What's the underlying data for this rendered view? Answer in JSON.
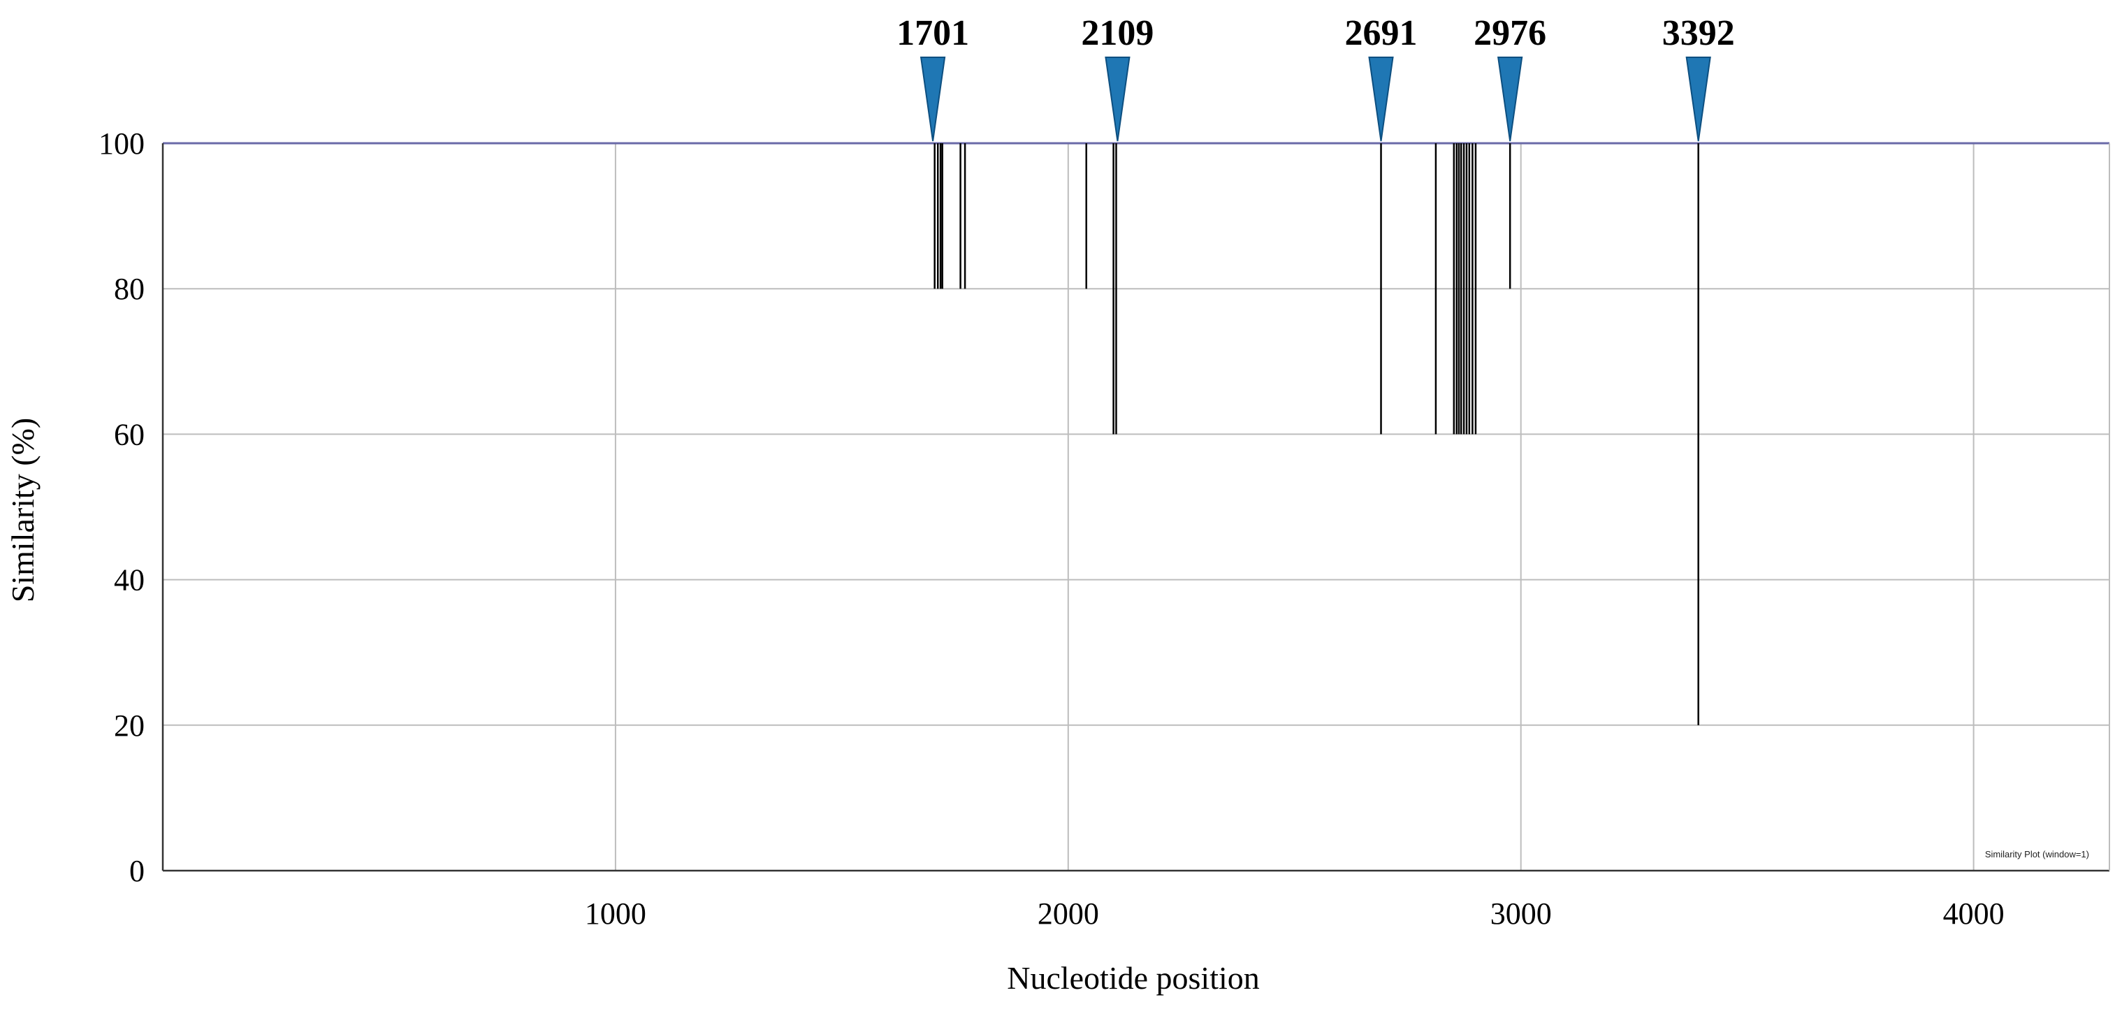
{
  "chart_data": {
    "type": "line",
    "xlabel": "Nucleotide position",
    "ylabel": "Similarity (%)",
    "xlim": [
      0,
      4300
    ],
    "ylim": [
      0,
      100
    ],
    "x_ticks": [
      1000,
      2000,
      3000,
      4000
    ],
    "y_ticks": [
      0,
      20,
      40,
      60,
      80,
      100
    ],
    "grid": true,
    "baseline": 100,
    "legend_note": "Similarity Plot (window=1)",
    "colors": {
      "series": "#000000",
      "baseline": "#6a6aa8",
      "grid": "#bdbdbd",
      "marker": "#1f77b4"
    },
    "markers": [
      {
        "label": "1701",
        "x": 1701
      },
      {
        "label": "2109",
        "x": 2109
      },
      {
        "label": "2691",
        "x": 2691
      },
      {
        "label": "2976",
        "x": 2976
      },
      {
        "label": "3392",
        "x": 3392
      }
    ],
    "dips": [
      {
        "x": 1705,
        "y": 80
      },
      {
        "x": 1712,
        "y": 80
      },
      {
        "x": 1718,
        "y": 80
      },
      {
        "x": 1722,
        "y": 80
      },
      {
        "x": 1762,
        "y": 80
      },
      {
        "x": 1772,
        "y": 80
      },
      {
        "x": 2040,
        "y": 80
      },
      {
        "x": 2100,
        "y": 60
      },
      {
        "x": 2106,
        "y": 60
      },
      {
        "x": 2691,
        "y": 60
      },
      {
        "x": 2812,
        "y": 60
      },
      {
        "x": 2852,
        "y": 60
      },
      {
        "x": 2858,
        "y": 60
      },
      {
        "x": 2863,
        "y": 60
      },
      {
        "x": 2868,
        "y": 60
      },
      {
        "x": 2874,
        "y": 60
      },
      {
        "x": 2880,
        "y": 60
      },
      {
        "x": 2886,
        "y": 60
      },
      {
        "x": 2893,
        "y": 60
      },
      {
        "x": 2900,
        "y": 60
      },
      {
        "x": 2976,
        "y": 80
      },
      {
        "x": 3392,
        "y": 20
      }
    ]
  }
}
